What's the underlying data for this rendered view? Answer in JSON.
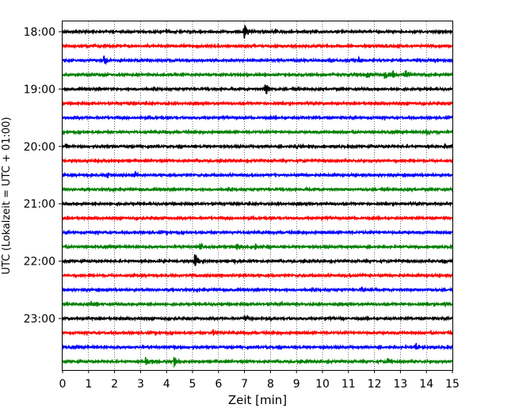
{
  "chart_data": {
    "type": "line",
    "title": "",
    "xlabel": "Zeit  [min]",
    "ylabel": "UTC (Lokalzeit = UTC + 01:00)",
    "xlim": [
      0,
      15
    ],
    "x_ticks": [
      "0",
      "1",
      "2",
      "3",
      "4",
      "5",
      "6",
      "7",
      "8",
      "9",
      "10",
      "11",
      "12",
      "13",
      "14",
      "15"
    ],
    "y_ticks": [
      "18:00",
      "19:00",
      "20:00",
      "21:00",
      "22:00",
      "23:00"
    ],
    "grid": "vertical dotted lines at each minute",
    "trace_interval_min": 15,
    "color_cycle": [
      "#000000",
      "#ff0000",
      "#0000ff",
      "#008000"
    ],
    "traces": [
      {
        "start": "18:00",
        "events": [
          {
            "t": 7.0,
            "amp": 1.0
          },
          {
            "t": 4.0,
            "amp": 0.2
          },
          {
            "t": 8.2,
            "amp": 0.2
          }
        ]
      },
      {
        "start": "18:15",
        "events": []
      },
      {
        "start": "18:30",
        "events": [
          {
            "t": 1.6,
            "amp": 0.55
          },
          {
            "t": 2.2,
            "amp": 0.2
          },
          {
            "t": 11.4,
            "amp": 0.3
          }
        ]
      },
      {
        "start": "18:45",
        "events": [
          {
            "t": 11.7,
            "amp": 0.4
          },
          {
            "t": 12.4,
            "amp": 0.5
          },
          {
            "t": 12.7,
            "amp": 0.4
          },
          {
            "t": 13.2,
            "amp": 0.6
          }
        ]
      },
      {
        "start": "19:00",
        "events": [
          {
            "t": 7.8,
            "amp": 0.7
          },
          {
            "t": 12.2,
            "amp": 0.15
          }
        ]
      },
      {
        "start": "19:15",
        "events": []
      },
      {
        "start": "19:30",
        "events": []
      },
      {
        "start": "19:45",
        "events": [
          {
            "t": 14.0,
            "amp": 0.3
          }
        ]
      },
      {
        "start": "20:00",
        "events": [
          {
            "t": 0.1,
            "amp": 0.3
          },
          {
            "t": 9.0,
            "amp": 0.25
          },
          {
            "t": 14.7,
            "amp": 0.25
          }
        ]
      },
      {
        "start": "20:15",
        "events": []
      },
      {
        "start": "20:30",
        "events": [
          {
            "t": 1.7,
            "amp": 0.4
          },
          {
            "t": 2.8,
            "amp": 0.3
          }
        ]
      },
      {
        "start": "20:45",
        "events": []
      },
      {
        "start": "21:00",
        "events": []
      },
      {
        "start": "21:15",
        "events": []
      },
      {
        "start": "21:30",
        "events": []
      },
      {
        "start": "21:45",
        "events": [
          {
            "t": 5.3,
            "amp": 0.5
          },
          {
            "t": 6.7,
            "amp": 0.4
          },
          {
            "t": 7.4,
            "amp": 0.25
          }
        ]
      },
      {
        "start": "22:00",
        "events": [
          {
            "t": 5.1,
            "amp": 0.9
          },
          {
            "t": 6.6,
            "amp": 0.2
          },
          {
            "t": 14.5,
            "amp": 0.15
          }
        ]
      },
      {
        "start": "22:15",
        "events": [
          {
            "t": 11.4,
            "amp": 0.25
          }
        ]
      },
      {
        "start": "22:30",
        "events": [
          {
            "t": 11.5,
            "amp": 0.3
          }
        ]
      },
      {
        "start": "22:45",
        "events": [
          {
            "t": 1.1,
            "amp": 0.3
          },
          {
            "t": 8.4,
            "amp": 0.2
          },
          {
            "t": 14.7,
            "amp": 0.3
          }
        ]
      },
      {
        "start": "23:00",
        "events": [
          {
            "t": 7.0,
            "amp": 0.3
          },
          {
            "t": 8.0,
            "amp": 0.2
          },
          {
            "t": 10.7,
            "amp": 0.15
          }
        ]
      },
      {
        "start": "23:15",
        "events": [
          {
            "t": 5.8,
            "amp": 0.3
          },
          {
            "t": 14.8,
            "amp": 0.2
          }
        ]
      },
      {
        "start": "23:30",
        "events": [
          {
            "t": 13.6,
            "amp": 0.45
          }
        ]
      },
      {
        "start": "23:45",
        "events": [
          {
            "t": 3.2,
            "amp": 0.4
          },
          {
            "t": 4.3,
            "amp": 0.5
          },
          {
            "t": 12.5,
            "amp": 0.35
          }
        ]
      }
    ]
  }
}
